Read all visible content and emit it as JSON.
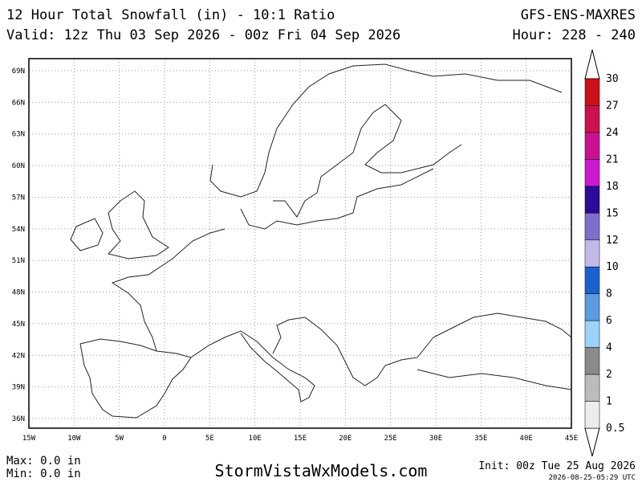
{
  "header": {
    "title": "12 Hour Total Snowfall (in) - 10:1 Ratio",
    "valid": "Valid: 12z Thu 03 Sep 2026 - 00z Fri 04 Sep 2026",
    "model": "GFS-ENS-MAXRES",
    "hour": "Hour: 228 - 240"
  },
  "map": {
    "lat_labels": [
      "69N",
      "66N",
      "63N",
      "60N",
      "57N",
      "54N",
      "51N",
      "48N",
      "45N",
      "42N",
      "39N",
      "36N"
    ],
    "lon_labels": [
      "15W",
      "10W",
      "5W",
      "0",
      "5E",
      "10E",
      "15E",
      "20E",
      "25E",
      "30E",
      "35E",
      "40E",
      "45E"
    ]
  },
  "colorbar": {
    "labels": [
      30,
      27,
      24,
      21,
      18,
      15,
      12,
      10,
      8,
      6,
      4,
      2,
      1,
      0.5
    ],
    "colors": [
      "#cc1118",
      "#cc1150",
      "#cc1190",
      "#cc18d0",
      "#2c0a9a",
      "#7f6fcc",
      "#c2b8ea",
      "#1a62d0",
      "#5c9ae2",
      "#9ad2f8",
      "#8a8a8a",
      "#bcbcbc",
      "#ececec"
    ]
  },
  "footer": {
    "max": "Max: 0.0 in",
    "min": "Min: 0.0 in",
    "site": "StormVistaWxModels.com",
    "init": "Init: 00z Tue 25 Aug 2026",
    "stamp": "2026-08-25-05:29 UTC"
  }
}
